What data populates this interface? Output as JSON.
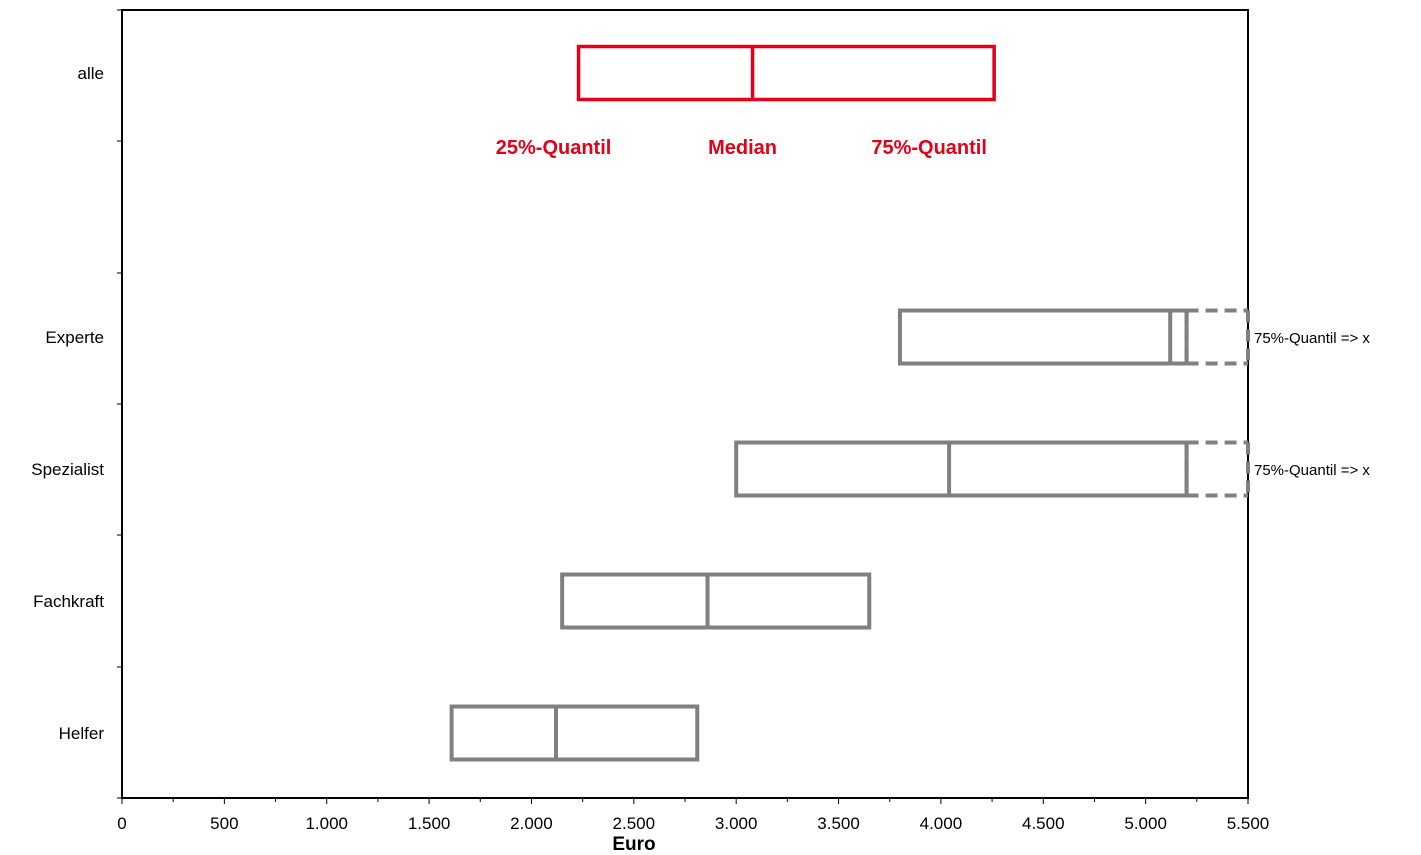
{
  "chart_data": {
    "type": "box",
    "xlabel": "Euro",
    "xlim": [
      0,
      5500
    ],
    "xticks": [
      0,
      500,
      1000,
      1500,
      2000,
      2500,
      3000,
      3500,
      4000,
      4500,
      5000,
      5500
    ],
    "xtick_labels": [
      "0",
      "500",
      "1.000",
      "1.500",
      "2.000",
      "2.500",
      "3.000",
      "3.500",
      "4.000",
      "4.500",
      "5.000",
      "5.500"
    ],
    "colors": {
      "highlight": "#e2001a",
      "default": "#808080",
      "axis": "#000000"
    },
    "categories": [
      {
        "label": "alle",
        "q25": 2230,
        "median": 3080,
        "q75": 4260,
        "highlight": true
      },
      {
        "label": "Experte",
        "q25": 3800,
        "median": 5120,
        "q75": 5200,
        "q75_open": true,
        "note": "75%-Quantil => x"
      },
      {
        "label": "Spezialist",
        "q25": 3000,
        "median": 4040,
        "q75": 5200,
        "q75_open": true,
        "note": "75%-Quantil => x"
      },
      {
        "label": "Fachkraft",
        "q25": 2150,
        "median": 2860,
        "q75": 3650
      },
      {
        "label": "Helfer",
        "q25": 1610,
        "median": 2120,
        "q75": 2810
      }
    ],
    "legend_annotations": [
      "25%-Quantil",
      "Median",
      "75%-Quantil"
    ]
  }
}
